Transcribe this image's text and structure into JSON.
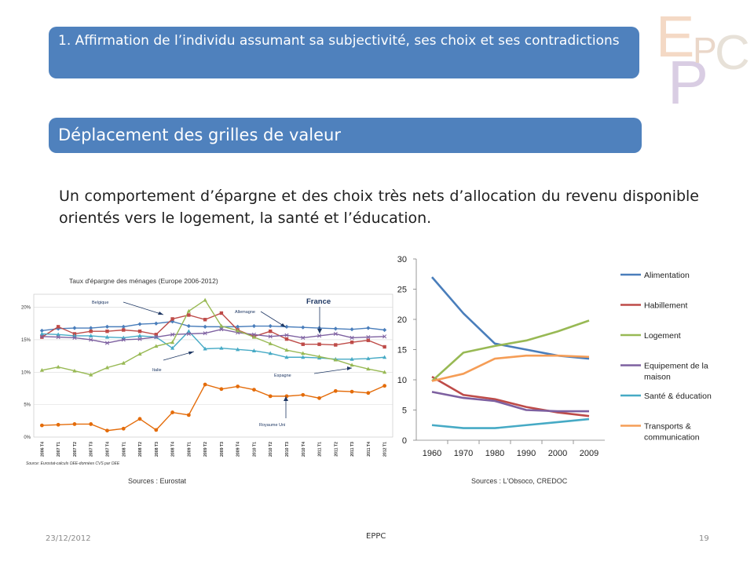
{
  "header": {
    "logo_text": "EPPC",
    "logo_letters": [
      "E",
      "P",
      "P",
      "C"
    ],
    "section_title": "1. Affirmation de l’individu assumant sa subjectivité, ses choix et ses contradictions",
    "slide_title": "Déplacement des grilles de valeur"
  },
  "body_text": "Un comportement d’épargne et des choix très nets d’allocation du revenu disponible orientés vers le logement, la santé et l’éducation.",
  "footer": {
    "date": "23/12/2012",
    "center_text": "EPPC",
    "page": "19"
  },
  "sources": {
    "left": "Sources : Eurostat",
    "right": "Sources : L'Obsoco, CREDOC"
  },
  "colors": {
    "banner": "#4f81bd",
    "alimentation": "#4a7ebb",
    "habillement": "#be4b48",
    "logement": "#98b954",
    "equipement": "#7d60a0",
    "sante": "#46aac5",
    "transports": "#f59d56"
  },
  "chart_data": [
    {
      "type": "line",
      "title": "Taux d'épargne des ménages (Europe 2006-2012)",
      "source_note": "Source:  Eurostat-calculs OEE-données CVS par OEE",
      "categories": [
        "2006 T4",
        "2007 T1",
        "2007 T2",
        "2007 T3",
        "2007 T4",
        "2008 T1",
        "2008 T2",
        "2008 T3",
        "2008 T4",
        "2009 T1",
        "2009 T2",
        "2009 T3",
        "2009 T4",
        "2010 T1",
        "2010 T2",
        "2010 T3",
        "2010 T4",
        "2011 T1",
        "2011 T2",
        "2011 T3",
        "2011 T4",
        "2012 T1"
      ],
      "y_tick_labels": [
        "0%",
        "5%",
        "10%",
        "15%",
        "20%"
      ],
      "ylim": [
        0,
        22
      ],
      "grid": true,
      "series": [
        {
          "name": "Allemagne",
          "color": "#4a7ebb",
          "marker": "diamond",
          "values": [
            16.4,
            16.7,
            16.8,
            16.8,
            17.0,
            17.0,
            17.4,
            17.5,
            17.8,
            17.1,
            17.0,
            17.0,
            17.0,
            17.1,
            17.1,
            17.0,
            16.9,
            16.8,
            16.7,
            16.6,
            16.8,
            16.5
          ]
        },
        {
          "name": "Belgique",
          "color": "#be4b48",
          "marker": "square",
          "values": [
            15.4,
            17.0,
            15.9,
            16.3,
            16.3,
            16.5,
            16.3,
            15.8,
            18.2,
            18.8,
            18.1,
            19.1,
            16.5,
            15.5,
            16.3,
            15.1,
            14.3,
            14.3,
            14.2,
            14.6,
            14.9,
            13.9
          ]
        },
        {
          "name": "Italie",
          "color": "#46aac5",
          "marker": "triangle",
          "values": [
            15.9,
            15.8,
            15.6,
            15.6,
            15.4,
            15.3,
            15.6,
            15.4,
            13.7,
            16.3,
            13.6,
            13.7,
            13.5,
            13.3,
            12.9,
            12.3,
            12.3,
            12.2,
            12.0,
            12.0,
            12.1,
            12.3
          ]
        },
        {
          "name": "France",
          "color": "#7d60a0",
          "marker": "x",
          "values": [
            15.5,
            15.4,
            15.3,
            15.0,
            14.5,
            15.0,
            15.1,
            15.4,
            15.8,
            15.9,
            16.0,
            16.6,
            16.1,
            15.8,
            15.5,
            15.7,
            15.3,
            15.6,
            15.9,
            15.3,
            15.4,
            15.5
          ]
        },
        {
          "name": "Espagne",
          "color": "#98b954",
          "marker": "triangle",
          "values": [
            10.3,
            10.8,
            10.2,
            9.6,
            10.7,
            11.4,
            12.8,
            14.0,
            14.6,
            19.4,
            21.1,
            17.1,
            16.4,
            15.4,
            14.4,
            13.4,
            12.9,
            12.4,
            11.9,
            11.1,
            10.5,
            10.0
          ]
        },
        {
          "name": "Royaume Uni",
          "color": "#e46c0a",
          "marker": "circle",
          "values": [
            1.8,
            1.9,
            2.0,
            2.0,
            1.0,
            1.3,
            2.8,
            1.1,
            3.8,
            3.4,
            8.1,
            7.4,
            7.8,
            7.3,
            6.3,
            6.3,
            6.5,
            6.0,
            7.1,
            7.0,
            6.8,
            7.9
          ]
        }
      ]
    },
    {
      "type": "line",
      "categories": [
        "1960",
        "1970",
        "1980",
        "1990",
        "2000",
        "2009"
      ],
      "y_tick_labels": [
        "0",
        "5",
        "10",
        "15",
        "20",
        "25",
        "30"
      ],
      "ylim": [
        0,
        30
      ],
      "grid": false,
      "legend": "right",
      "series": [
        {
          "name": "Alimentation",
          "color": "#4a7ebb",
          "values": [
            27,
            21,
            16,
            15,
            14,
            13.5
          ]
        },
        {
          "name": "Habillement",
          "color": "#be4b48",
          "values": [
            10.5,
            7.5,
            6.8,
            5.5,
            4.6,
            4.0
          ]
        },
        {
          "name": "Logement",
          "color": "#98b954",
          "values": [
            9.8,
            14.5,
            15.6,
            16.5,
            18,
            19.8
          ]
        },
        {
          "name": "Equipement de la maison",
          "color": "#7d60a0",
          "values": [
            8,
            7,
            6.5,
            5,
            4.8,
            4.8
          ]
        },
        {
          "name": "Santé & éducation",
          "color": "#46aac5",
          "values": [
            2.5,
            2,
            2,
            2.5,
            3,
            3.5
          ]
        },
        {
          "name": "Transports & communication",
          "color": "#f59d56",
          "values": [
            9.8,
            11,
            13.5,
            14,
            14,
            13.8
          ]
        }
      ]
    }
  ]
}
